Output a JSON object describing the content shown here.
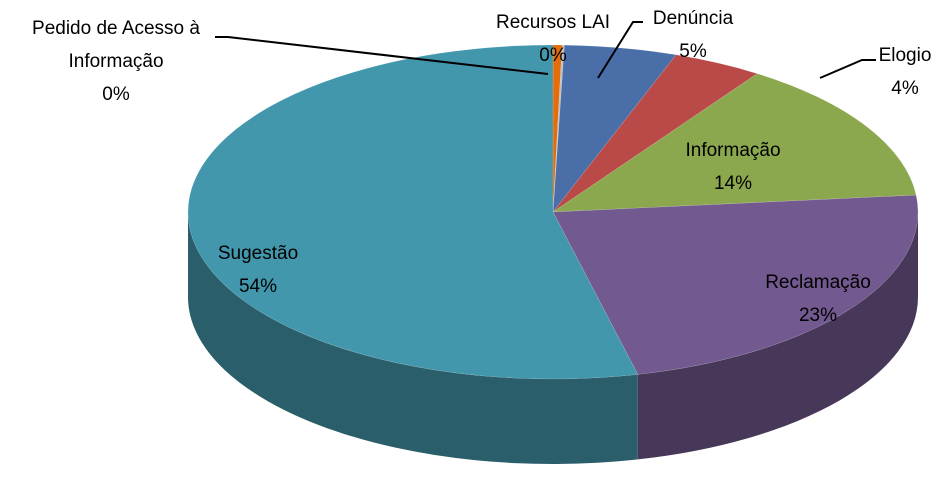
{
  "chart_data": {
    "type": "pie3d",
    "categories": [
      "Pedido de Acesso à Informação",
      "Recursos LAI",
      "Denúncia",
      "Elogio",
      "Informação",
      "Reclamação",
      "Sugestão"
    ],
    "values": [
      0.4,
      0.1,
      5,
      4,
      14,
      23,
      54
    ],
    "value_labels": [
      "0%",
      "0%",
      "5%",
      "4%",
      "14%",
      "23%",
      "54%"
    ],
    "colors": [
      "#e46c0a",
      "#c0c0c0",
      "#4a6fa8",
      "#b94a48",
      "#8ca84f",
      "#72598f",
      "#4397ad"
    ]
  }
}
